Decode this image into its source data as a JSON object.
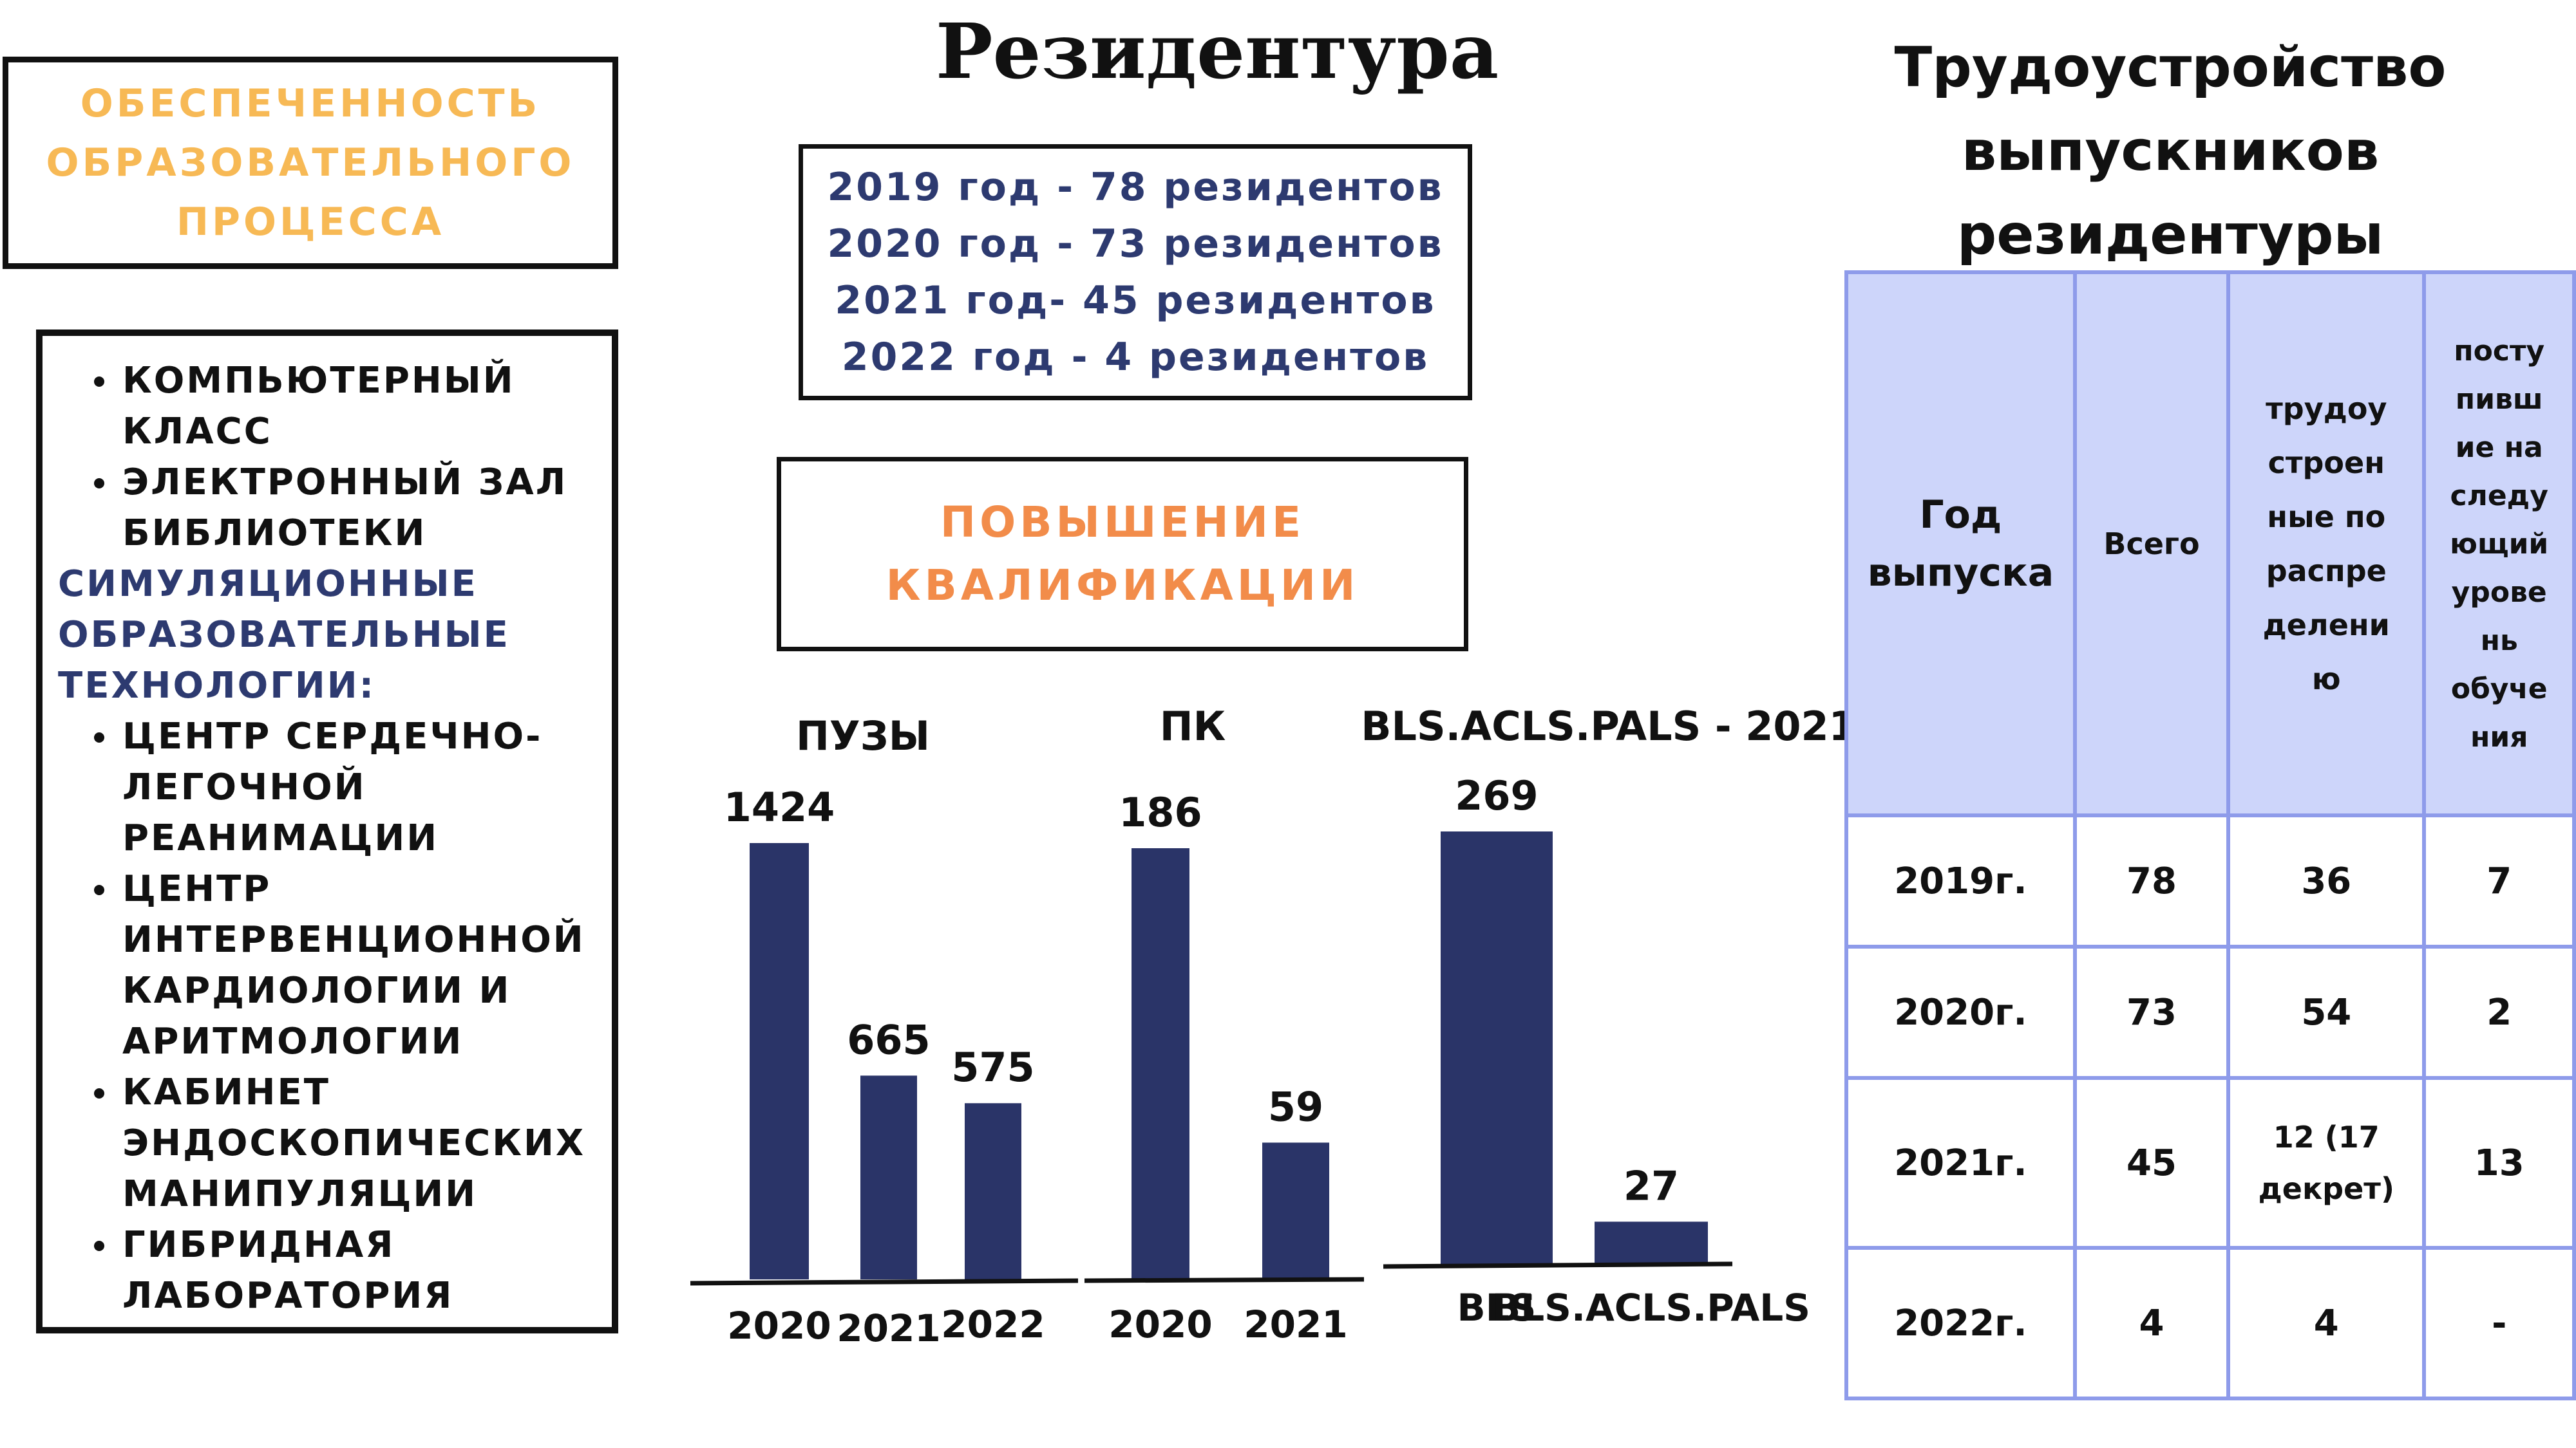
{
  "support_box": {
    "lines": [
      "ОБЕСПЕЧЕННОСТЬ",
      "ОБРАЗОВАТЕЛЬНОГО",
      "ПРОЦЕССА"
    ]
  },
  "facilities": {
    "items_a": [
      "КОМПЬЮТЕРНЫЙ",
      "КЛАСС"
    ],
    "items_b": [
      "ЭЛЕКТРОННЫЙ ЗАЛ",
      "БИБЛИОТЕКИ"
    ],
    "simulation_heading": [
      "СИМУЛЯЦИОННЫЕ",
      "ОБРАЗОВАТЕЛЬНЫЕ",
      "ТЕХНОЛОГИИ:"
    ],
    "items_c": [
      "ЦЕНТР СЕРДЕЧНО-",
      "ЛЕГОЧНОЙ",
      "РЕАНИМАЦИИ"
    ],
    "items_d": [
      "ЦЕНТР",
      "ИНТЕРВЕНЦИОННОЙ",
      "КАРДИОЛОГИИ И",
      "АРИТМОЛОГИИ"
    ],
    "items_e": [
      "КАБИНЕТ",
      "ЭНДОСКОПИЧЕСКИХ",
      "МАНИПУЛЯЦИИ"
    ],
    "items_f": [
      "ГИБРИДНАЯ",
      "ЛАБОРАТОРИЯ"
    ]
  },
  "title": "Резидентура",
  "residents": [
    "2019 год - 78 резидентов",
    "2020 год - 73 резидентов",
    "2021 год- 45 резидентов",
    "2022 год - 4 резидентов"
  ],
  "pk_box": {
    "lines": [
      "ПОВЫШЕНИЕ",
      "КВАЛИФИКАЦИИ"
    ]
  },
  "colors": {
    "bar": "#2A3468",
    "accent_orange": "#F28C4A",
    "accent_yellow": "#F7B955",
    "table_border": "#8E9BEA",
    "table_header": "#CDD5FA"
  },
  "chart_data": [
    {
      "type": "bar",
      "title": "ПУЗЫ",
      "categories": [
        "2020",
        "2021",
        "2022"
      ],
      "values": [
        1424,
        665,
        575
      ]
    },
    {
      "type": "bar",
      "title": "ПК",
      "categories": [
        "2020",
        "2021"
      ],
      "values": [
        186,
        59
      ]
    },
    {
      "type": "bar",
      "title": "BLS.ACLS.PALS - 2021",
      "categories": [
        "BLS",
        "BLS.ACLS.PALS"
      ],
      "values": [
        269,
        27
      ]
    }
  ],
  "table": {
    "title_lines": [
      "Трудоустройство",
      "выпускников",
      "резидентуры"
    ],
    "headers": {
      "year": [
        "Год",
        "выпуска"
      ],
      "total": "Всего",
      "employed": [
        "трудоу",
        "строен",
        "ные по",
        "распре",
        "делени",
        "ю"
      ],
      "next_level": [
        "посту",
        "пивш",
        "ие на",
        "следу",
        "ющий",
        "урове",
        "нь",
        "обуче",
        "ния"
      ]
    },
    "rows": [
      {
        "year": "2019г.",
        "total": "78",
        "employed": "36",
        "next": "7"
      },
      {
        "year": "2020г.",
        "total": "73",
        "employed": "54",
        "next": "2"
      },
      {
        "year": "2021г.",
        "total": "45",
        "employed_lines": [
          "12 (17",
          "декрет)"
        ],
        "next": "13"
      },
      {
        "year": "2022г.",
        "total": "4",
        "employed": "4",
        "next": "-"
      }
    ]
  }
}
